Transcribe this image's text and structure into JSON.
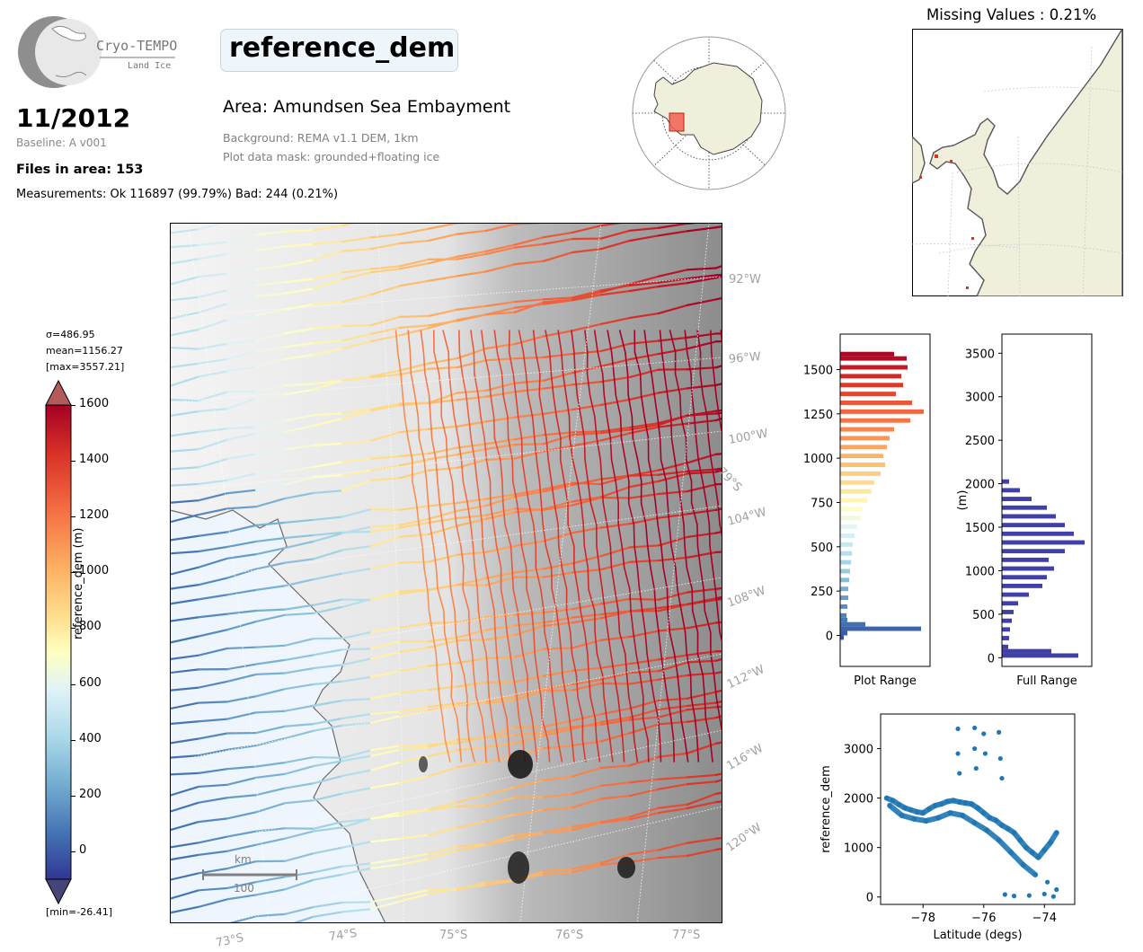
{
  "header": {
    "logo_text": "Cryo-TEMPO",
    "logo_subtext": "Land Ice",
    "date": "11/2012",
    "baseline": "Baseline: A v001",
    "files": "Files in area: 153",
    "measurements": "Measurements: Ok 116897 (99.79%) Bad: 244 (0.21%)",
    "variable_title": "reference_dem",
    "area": "Area: Amundsen Sea Embayment",
    "background": "Background: REMA v1.1 DEM, 1km",
    "mask": "Plot data mask: grounded+floating ice"
  },
  "missing_values": "Missing Values : 0.21%",
  "colorbar": {
    "sigma": "σ=486.95",
    "mean": "mean=1156.27",
    "max": "[max=3557.21]",
    "min": "[min=-26.41]",
    "label": "reference_dem (m)",
    "ticks": [
      "1600",
      "1400",
      "1200",
      "1000",
      "800",
      "600",
      "400",
      "200",
      "0"
    ]
  },
  "main_map": {
    "lon_labels": [
      "92°W",
      "96°W",
      "100°W",
      "104°W",
      "108°W",
      "112°W",
      "116°W",
      "120°W"
    ],
    "lat_labels": [
      "73°S",
      "74°S",
      "75°S",
      "76°S",
      "77°S"
    ],
    "lat_inline": "79°S",
    "scalebar_unit": "km",
    "scalebar_value": "100"
  },
  "colors": {
    "ocean": "#eef5fc",
    "land_overview": "#efefdc",
    "bad_points": "#e03020",
    "full_range_bars": "#4040a8",
    "scatter_points": "#1f77b4",
    "axis_text_grey": "#a0a0a0"
  },
  "chart_data": [
    {
      "type": "bar",
      "name": "plot_range_histogram",
      "orientation": "horizontal",
      "xlabel": "Plot Range",
      "yticks": [
        "0",
        "250",
        "500",
        "750",
        "1000",
        "1250",
        "1500"
      ],
      "ylim": [
        -175,
        1700
      ],
      "bins": [
        {
          "y": -25,
          "v": 0.04
        },
        {
          "y": 0,
          "v": 0.08
        },
        {
          "y": 25,
          "v": 0.9
        },
        {
          "y": 50,
          "v": 0.28
        },
        {
          "y": 75,
          "v": 0.08
        },
        {
          "y": 100,
          "v": 0.07
        },
        {
          "y": 150,
          "v": 0.08
        },
        {
          "y": 200,
          "v": 0.09
        },
        {
          "y": 250,
          "v": 0.09
        },
        {
          "y": 300,
          "v": 0.1
        },
        {
          "y": 350,
          "v": 0.11
        },
        {
          "y": 400,
          "v": 0.12
        },
        {
          "y": 450,
          "v": 0.13
        },
        {
          "y": 500,
          "v": 0.14
        },
        {
          "y": 550,
          "v": 0.16
        },
        {
          "y": 600,
          "v": 0.19
        },
        {
          "y": 650,
          "v": 0.22
        },
        {
          "y": 700,
          "v": 0.25
        },
        {
          "y": 750,
          "v": 0.3
        },
        {
          "y": 800,
          "v": 0.35
        },
        {
          "y": 850,
          "v": 0.38
        },
        {
          "y": 900,
          "v": 0.45
        },
        {
          "y": 950,
          "v": 0.5
        },
        {
          "y": 1000,
          "v": 0.48
        },
        {
          "y": 1050,
          "v": 0.52
        },
        {
          "y": 1100,
          "v": 0.55
        },
        {
          "y": 1150,
          "v": 0.6
        },
        {
          "y": 1200,
          "v": 0.78
        },
        {
          "y": 1250,
          "v": 0.93
        },
        {
          "y": 1300,
          "v": 0.8
        },
        {
          "y": 1350,
          "v": 0.62
        },
        {
          "y": 1400,
          "v": 0.7
        },
        {
          "y": 1450,
          "v": 0.68
        },
        {
          "y": 1500,
          "v": 0.75
        },
        {
          "y": 1550,
          "v": 0.74
        },
        {
          "y": 1575,
          "v": 0.6
        }
      ]
    },
    {
      "type": "bar",
      "name": "full_range_histogram",
      "orientation": "horizontal",
      "xlabel": "Full Range",
      "ylabel": "(m)",
      "yticks": [
        "0",
        "500",
        "1000",
        "1500",
        "2000",
        "2500",
        "3000",
        "3500"
      ],
      "ylim": [
        -100,
        3720
      ],
      "bins": [
        {
          "y": 0,
          "v": 0.85
        },
        {
          "y": 50,
          "v": 0.55
        },
        {
          "y": 100,
          "v": 0.07
        },
        {
          "y": 200,
          "v": 0.08
        },
        {
          "y": 300,
          "v": 0.09
        },
        {
          "y": 400,
          "v": 0.11
        },
        {
          "y": 500,
          "v": 0.13
        },
        {
          "y": 600,
          "v": 0.18
        },
        {
          "y": 700,
          "v": 0.3
        },
        {
          "y": 800,
          "v": 0.45
        },
        {
          "y": 900,
          "v": 0.5
        },
        {
          "y": 1000,
          "v": 0.58
        },
        {
          "y": 1100,
          "v": 0.52
        },
        {
          "y": 1200,
          "v": 0.7
        },
        {
          "y": 1300,
          "v": 0.92
        },
        {
          "y": 1400,
          "v": 0.8
        },
        {
          "y": 1500,
          "v": 0.7
        },
        {
          "y": 1600,
          "v": 0.6
        },
        {
          "y": 1700,
          "v": 0.5
        },
        {
          "y": 1800,
          "v": 0.33
        },
        {
          "y": 1900,
          "v": 0.2
        },
        {
          "y": 2000,
          "v": 0.08
        }
      ]
    },
    {
      "type": "scatter",
      "name": "latitude_scatter",
      "xlabel": "Latitude (degs)",
      "ylabel": "reference_dem",
      "xticks": [
        "−78",
        "−76",
        "−74"
      ],
      "yticks": [
        "0",
        "1000",
        "2000",
        "3000"
      ],
      "xlim": [
        -79.4,
        -73.0
      ],
      "ylim": [
        -150,
        3700
      ],
      "points": [
        [
          -79.2,
          2000
        ],
        [
          -79.0,
          1950
        ],
        [
          -78.8,
          1870
        ],
        [
          -78.6,
          1800
        ],
        [
          -78.4,
          1760
        ],
        [
          -78.2,
          1720
        ],
        [
          -78.0,
          1700
        ],
        [
          -77.8,
          1780
        ],
        [
          -77.6,
          1850
        ],
        [
          -77.4,
          1880
        ],
        [
          -77.2,
          1930
        ],
        [
          -77.0,
          1950
        ],
        [
          -76.8,
          1920
        ],
        [
          -76.6,
          1900
        ],
        [
          -76.4,
          1880
        ],
        [
          -76.2,
          1800
        ],
        [
          -76.0,
          1700
        ],
        [
          -75.8,
          1600
        ],
        [
          -75.6,
          1550
        ],
        [
          -75.4,
          1450
        ],
        [
          -75.2,
          1380
        ],
        [
          -75.0,
          1300
        ],
        [
          -74.8,
          1150
        ],
        [
          -74.6,
          1000
        ],
        [
          -74.4,
          900
        ],
        [
          -74.2,
          800
        ],
        [
          -74.0,
          950
        ],
        [
          -73.8,
          1100
        ],
        [
          -73.6,
          1300
        ],
        [
          -79.1,
          1850
        ],
        [
          -78.7,
          1650
        ],
        [
          -78.3,
          1580
        ],
        [
          -77.9,
          1540
        ],
        [
          -77.5,
          1600
        ],
        [
          -77.1,
          1700
        ],
        [
          -76.7,
          1650
        ],
        [
          -76.3,
          1500
        ],
        [
          -75.9,
          1350
        ],
        [
          -75.5,
          1150
        ],
        [
          -75.1,
          900
        ],
        [
          -74.7,
          650
        ],
        [
          -74.3,
          450
        ],
        [
          -73.9,
          300
        ],
        [
          -73.6,
          150
        ],
        [
          -75.3,
          50
        ],
        [
          -75.0,
          20
        ],
        [
          -74.5,
          30
        ],
        [
          -74.0,
          60
        ],
        [
          -73.7,
          10
        ],
        [
          -76.85,
          3400
        ],
        [
          -76.85,
          2900
        ],
        [
          -76.8,
          2500
        ],
        [
          -76.3,
          3420
        ],
        [
          -76.3,
          3000
        ],
        [
          -76.25,
          2600
        ],
        [
          -76.0,
          3300
        ],
        [
          -75.95,
          2900
        ],
        [
          -75.5,
          3330
        ],
        [
          -75.45,
          2800
        ],
        [
          -75.4,
          2400
        ]
      ]
    }
  ]
}
